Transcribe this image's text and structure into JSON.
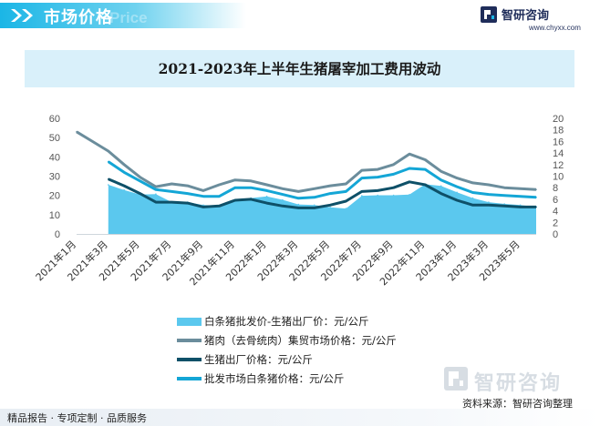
{
  "header": {
    "title": "市场价格",
    "ghost_text": "Price",
    "brand_name": "智研咨询",
    "brand_url": "www.chyxx.com"
  },
  "colors": {
    "accent": "#1bb6e6",
    "area": "#5bc8ee",
    "meat": "#6b8d9c",
    "pig": "#0e5068",
    "carcass": "#14a6d6",
    "title_bg": "#d9f0fa"
  },
  "chart_data": {
    "type": "line",
    "title": "2021-2023年上半年生猪屠宰加工费用波动",
    "categories": [
      "2021年1月",
      "2021年2月",
      "2021年3月",
      "2021年4月",
      "2021年5月",
      "2021年6月",
      "2021年7月",
      "2021年8月",
      "2021年9月",
      "2021年10月",
      "2021年11月",
      "2021年12月",
      "2022年1月",
      "2022年2月",
      "2022年3月",
      "2022年4月",
      "2022年5月",
      "2022年6月",
      "2022年7月",
      "2022年8月",
      "2022年9月",
      "2022年10月",
      "2022年11月",
      "2022年12月",
      "2023年1月",
      "2023年2月",
      "2023年3月",
      "2023年4月",
      "2023年5月",
      "2023年6月"
    ],
    "x_tick_labels": [
      "2021年1月",
      "2021年3月",
      "2021年5月",
      "2021年7月",
      "2021年9月",
      "2021年11月",
      "2022年1月",
      "2022年3月",
      "2022年5月",
      "2022年7月",
      "2022年9月",
      "2022年11月",
      "2023年1月",
      "2023年3月",
      "2023年5月"
    ],
    "y_left": {
      "min": 0,
      "max": 60,
      "ticks": [
        0,
        10,
        20,
        30,
        40,
        50,
        60
      ]
    },
    "y_right": {
      "min": 0,
      "max": 20,
      "ticks": [
        0,
        2,
        4,
        6,
        8,
        10,
        12,
        14,
        16,
        18,
        20
      ]
    },
    "series": [
      {
        "name": "白条猪批发价-生猪出厂价：元/公斤",
        "kind": "area",
        "axis": "right",
        "color": "#5bc8ee",
        "values": [
          null,
          null,
          8.5,
          7.6,
          6.8,
          6.9,
          5.5,
          5.5,
          5.0,
          4.9,
          5.8,
          6.2,
          6.5,
          5.9,
          5.1,
          5.0,
          4.6,
          4.4,
          6.6,
          6.7,
          6.7,
          6.8,
          8.6,
          8.3,
          7.2,
          6.2,
          5.5,
          5.2,
          5.0,
          4.7
        ]
      },
      {
        "name": "猪肉（去骨统肉）集贸市场价格：元/公斤",
        "kind": "line",
        "axis": "left",
        "color": "#6b8d9c",
        "values": [
          53,
          48,
          43,
          36,
          29.5,
          24.5,
          26,
          25,
          22.5,
          25.5,
          28,
          27.5,
          25.5,
          23.5,
          22,
          23.5,
          25,
          26,
          33,
          33.5,
          36,
          41.5,
          38.5,
          32.5,
          29,
          26.5,
          25.5,
          24,
          23.5,
          23
        ]
      },
      {
        "name": "生猪出厂价格：元/公斤",
        "kind": "line",
        "axis": "left",
        "color": "#0e5068",
        "values": [
          null,
          null,
          28.5,
          25,
          21,
          16.5,
          16.5,
          16,
          14,
          14.5,
          17.5,
          18,
          16,
          14.5,
          13.5,
          13.5,
          15,
          17,
          22,
          22.5,
          24,
          27,
          25.5,
          21,
          17.5,
          15,
          15,
          14.5,
          14,
          14
        ]
      },
      {
        "name": "批发市场白条猪价格：元/公斤",
        "kind": "line",
        "axis": "left",
        "color": "#14a6d6",
        "values": [
          null,
          null,
          37.5,
          32,
          27.5,
          23,
          22,
          21,
          19.5,
          19.5,
          24,
          24,
          22.5,
          20.5,
          18.5,
          19,
          21,
          22,
          29,
          29.5,
          31,
          34,
          33.5,
          28,
          24.5,
          21.5,
          20.5,
          20,
          19.5,
          19
        ]
      }
    ],
    "grid": false,
    "legend_position": "bottom"
  },
  "footer": {
    "source": "资料来源：智研咨询整理",
    "tagline": "精品报告 · 专项定制 · 品质服务",
    "watermark": "智研咨询"
  }
}
